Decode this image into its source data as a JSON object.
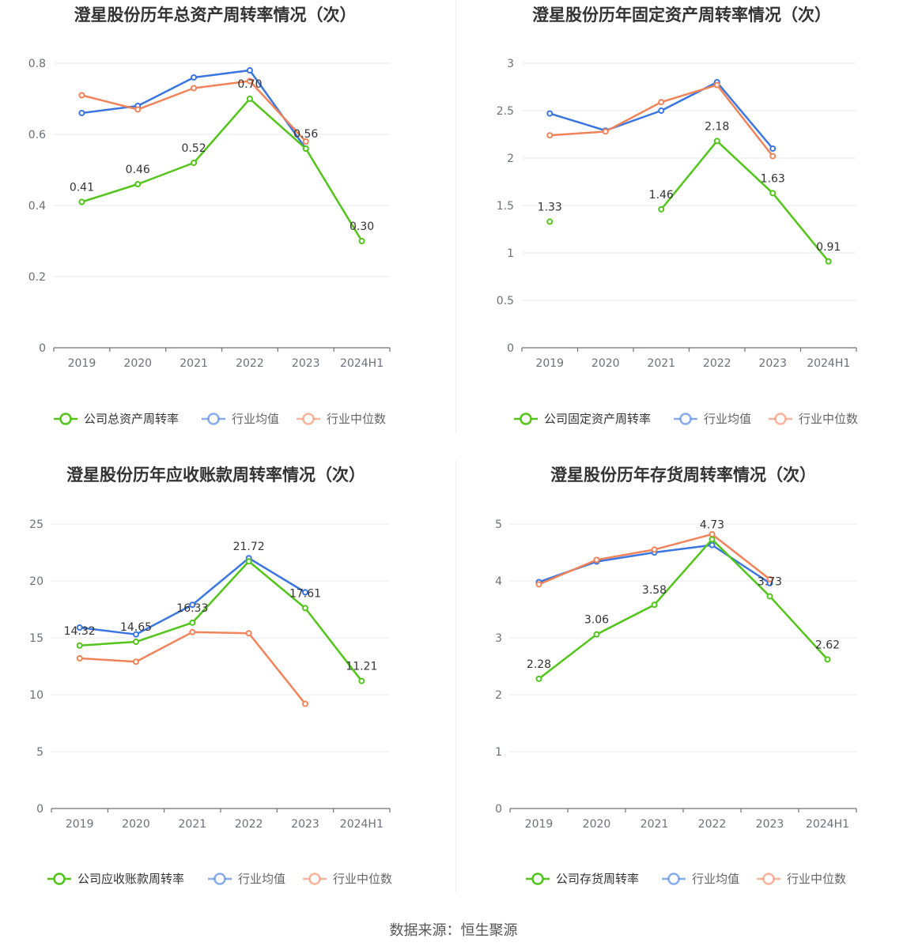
{
  "colors": {
    "company": "#52c41a",
    "industry_avg": "#3a75e0",
    "industry_median": "#f0835a",
    "grid": "#e6e9ef",
    "axis": "#6e7079"
  },
  "source_text": "数据来源：恒生聚源",
  "chart_data": [
    {
      "type": "line",
      "title": "澄星股份历年总资产周转率情况（次）",
      "categories": [
        "2019",
        "2020",
        "2021",
        "2022",
        "2023",
        "2024H1"
      ],
      "ylim": [
        0,
        0.8
      ],
      "yticks": [
        0,
        0.2,
        0.4,
        0.6,
        0.8
      ],
      "ytick_labels": [
        "0",
        "0.2",
        "0.4",
        "0.6",
        "0.8"
      ],
      "series": [
        {
          "name": "行业均值",
          "key": "industry_avg",
          "values": [
            0.66,
            0.68,
            0.76,
            0.78,
            0.56,
            null
          ]
        },
        {
          "name": "行业中位数",
          "key": "industry_median",
          "values": [
            0.71,
            0.67,
            0.73,
            0.75,
            0.58,
            null
          ]
        },
        {
          "name": "公司总资产周转率",
          "key": "company",
          "values": [
            0.41,
            0.46,
            0.52,
            0.7,
            0.56,
            0.3
          ],
          "labels": [
            "0.41",
            "0.46",
            "0.52",
            "0.70",
            "0.56",
            "0.30"
          ]
        }
      ],
      "legend": [
        "公司总资产周转率",
        "行业均值",
        "行业中位数"
      ]
    },
    {
      "type": "line",
      "title": "澄星股份历年固定资产周转率情况（次）",
      "categories": [
        "2019",
        "2020",
        "2021",
        "2022",
        "2023",
        "2024H1"
      ],
      "ylim": [
        0,
        3
      ],
      "yticks": [
        0,
        0.5,
        1,
        1.5,
        2,
        2.5,
        3
      ],
      "ytick_labels": [
        "0",
        "0.5",
        "1",
        "1.5",
        "2",
        "2.5",
        "3"
      ],
      "series": [
        {
          "name": "行业均值",
          "key": "industry_avg",
          "values": [
            2.47,
            2.29,
            2.5,
            2.8,
            2.1,
            null
          ]
        },
        {
          "name": "行业中位数",
          "key": "industry_median",
          "values": [
            2.24,
            2.28,
            2.59,
            2.77,
            2.02,
            null
          ]
        },
        {
          "name": "公司固定资产周转率",
          "key": "company",
          "values": [
            1.33,
            null,
            1.46,
            2.18,
            1.63,
            0.91
          ],
          "labels": [
            "1.33",
            null,
            "1.46",
            "2.18",
            "1.63",
            "0.91"
          ]
        }
      ],
      "legend": [
        "公司固定资产周转率",
        "行业均值",
        "行业中位数"
      ]
    },
    {
      "type": "line",
      "title": "澄星股份历年应收账款周转率情况（次）",
      "categories": [
        "2019",
        "2020",
        "2021",
        "2022",
        "2023",
        "2024H1"
      ],
      "ylim": [
        0,
        25
      ],
      "yticks": [
        0,
        5,
        10,
        15,
        20,
        25
      ],
      "ytick_labels": [
        "0",
        "5",
        "10",
        "15",
        "20",
        "25"
      ],
      "series": [
        {
          "name": "行业均值",
          "key": "industry_avg",
          "values": [
            15.9,
            15.3,
            17.9,
            22.0,
            19.0,
            null
          ]
        },
        {
          "name": "行业中位数",
          "key": "industry_median",
          "values": [
            13.2,
            12.9,
            15.5,
            15.4,
            9.2,
            null
          ]
        },
        {
          "name": "公司应收账款周转率",
          "key": "company",
          "values": [
            14.32,
            14.65,
            16.33,
            21.72,
            17.61,
            11.21
          ],
          "labels": [
            "14.32",
            "14.65",
            "16.33",
            "21.72",
            "17.61",
            "11.21"
          ]
        }
      ],
      "legend": [
        "公司应收账款周转率",
        "行业均值",
        "行业中位数"
      ]
    },
    {
      "type": "line",
      "title": "澄星股份历年存货周转率情况（次）",
      "categories": [
        "2019",
        "2020",
        "2021",
        "2022",
        "2023",
        "2024H1"
      ],
      "ylim": [
        0,
        5
      ],
      "yticks": [
        0,
        1,
        2,
        3,
        4,
        5
      ],
      "ytick_labels": [
        "0",
        "1",
        "2",
        "3",
        "4",
        "5"
      ],
      "series": [
        {
          "name": "行业均值",
          "key": "industry_avg",
          "values": [
            3.98,
            4.34,
            4.5,
            4.63,
            3.96,
            null
          ]
        },
        {
          "name": "行业中位数",
          "key": "industry_median",
          "values": [
            3.94,
            4.37,
            4.55,
            4.82,
            4.03,
            null
          ]
        },
        {
          "name": "公司存货周转率",
          "key": "company",
          "values": [
            2.28,
            3.06,
            3.58,
            4.73,
            3.73,
            2.62
          ],
          "labels": [
            "2.28",
            "3.06",
            "3.58",
            "4.73",
            "3.73",
            "2.62"
          ]
        }
      ],
      "legend": [
        "公司存货周转率",
        "行业均值",
        "行业中位数"
      ]
    }
  ]
}
